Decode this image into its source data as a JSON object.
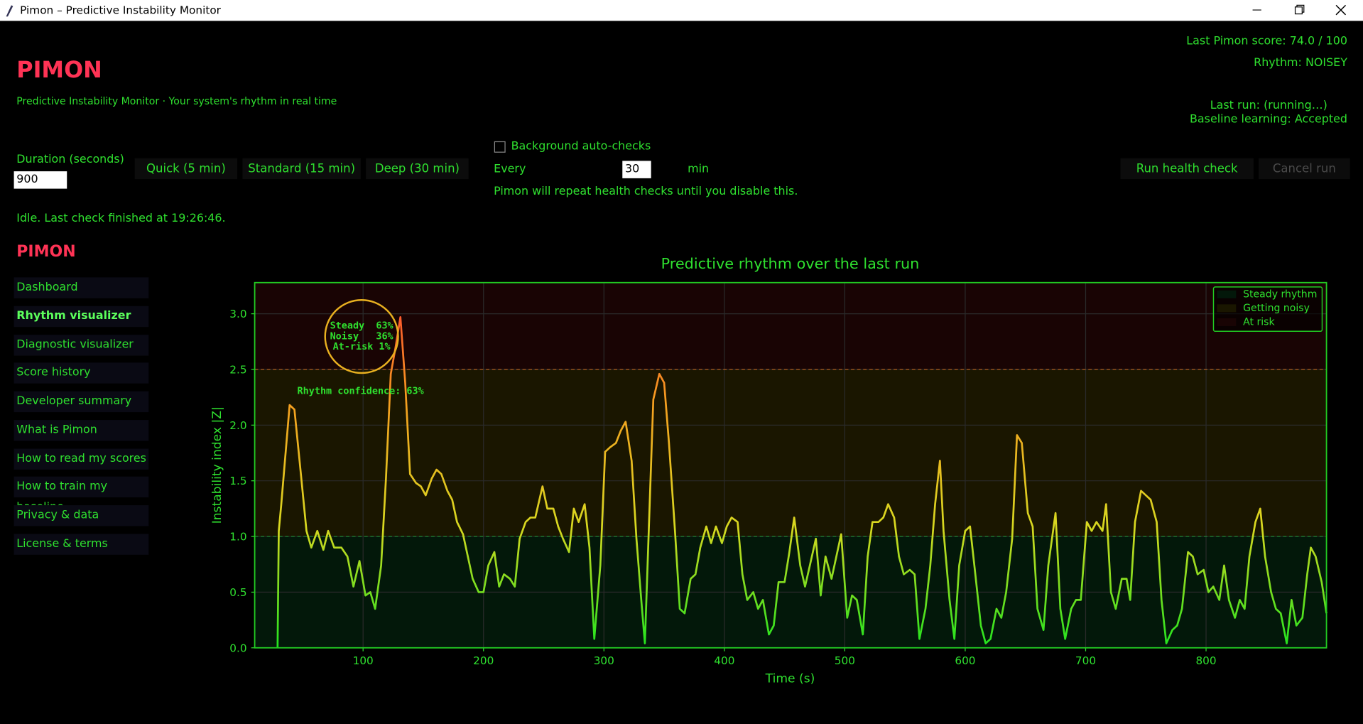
{
  "window": {
    "title": "Pimon – Predictive Instability Monitor"
  },
  "header": {
    "app_name": "PIMON",
    "tagline": "Predictive Instability Monitor · Your system's rhythm in real time",
    "score": "Last Pimon score: 74.0 / 100",
    "rhythm": "Rhythm: NOISEY",
    "last_run": "Last run: (running…)",
    "baseline": "Baseline learning: Accepted"
  },
  "controls": {
    "duration_label": "Duration (seconds)",
    "duration_value": "900",
    "presets": [
      "Quick (5 min)",
      "Standard (15 min)",
      "Deep (30 min)"
    ],
    "auto_check_label": "Background auto-checks",
    "every_label": "Every",
    "every_value": "30",
    "every_unit": "min",
    "auto_note": "Pimon will repeat health checks until you disable this.",
    "run_button": "Run health check",
    "cancel_button": "Cancel run"
  },
  "status": "Idle. Last check finished at 19:26:46.",
  "sidebar": {
    "title": "PIMON",
    "active_index": 1,
    "items": [
      "Dashboard",
      "Rhythm visualizer",
      "Diagnostic visualizer",
      "Score history",
      "Developer summary",
      "What is Pimon",
      "How to read my scores",
      "How to train my baseline",
      "Privacy & data",
      "License & terms"
    ]
  },
  "chart_data": {
    "type": "line",
    "title": "Predictive rhythm over the last run",
    "x_label": "Time (s)",
    "y_label": "Instability index |Z|",
    "xlim": [
      10,
      900
    ],
    "ylim": [
      0,
      3.28
    ],
    "xticks": [
      100,
      200,
      300,
      400,
      500,
      600,
      700,
      800
    ],
    "yticks": [
      {
        "value": 0,
        "label": "0.0"
      },
      0.5,
      {
        "value": 1,
        "label": "1.0"
      },
      1.5,
      {
        "value": 2,
        "label": "2.0"
      },
      2.5,
      {
        "value": 3,
        "label": "3.0"
      }
    ],
    "grid": true,
    "legend": "upper right",
    "line_colors": [
      "#1fe41f",
      "#d8d820",
      "#f5a020",
      "#ff4030"
    ],
    "zones": [
      {
        "name": "Steady rhythm",
        "from": 0,
        "color": "#03180a",
        "line_color": "#1e8f3a"
      },
      {
        "name": "Getting noisy",
        "from": 1,
        "color": "#1a1600",
        "line_color": "#1e8f3a"
      },
      {
        "name": "At risk",
        "from": 2.5,
        "color": "#190404",
        "line_color": "#b06020"
      }
    ],
    "annotations": {
      "mix": [
        "Steady  63%",
        "Noisy   36%",
        "At-risk 1%"
      ],
      "confidence": "Rhythm confidence: 63%"
    },
    "x": [
      29,
      30,
      32,
      39,
      43,
      48,
      53,
      57,
      62,
      67,
      71,
      76,
      82,
      87,
      92,
      97,
      102,
      106,
      110,
      115,
      119,
      123,
      127,
      131,
      135,
      139,
      144,
      148,
      152,
      157,
      161,
      165,
      170,
      174,
      178,
      183,
      187,
      191,
      196,
      200,
      204,
      209,
      213,
      217,
      222,
      226,
      230,
      235,
      239,
      243,
      249,
      253,
      258,
      262,
      266,
      271,
      275,
      279,
      284,
      288,
      292,
      297,
      301,
      305,
      310,
      314,
      318,
      323,
      327,
      331,
      334,
      337,
      341,
      346,
      350,
      354,
      359,
      363,
      367,
      372,
      376,
      380,
      385,
      389,
      393,
      398,
      402,
      406,
      411,
      415,
      419,
      424,
      428,
      432,
      437,
      441,
      445,
      450,
      454,
      458,
      463,
      467,
      471,
      476,
      480,
      484,
      489,
      493,
      497,
      502,
      506,
      510,
      515,
      519,
      523,
      528,
      532,
      536,
      541,
      545,
      549,
      554,
      558,
      562,
      567,
      571,
      575,
      579,
      582,
      587,
      591,
      595,
      600,
      604,
      608,
      613,
      617,
      621,
      626,
      630,
      634,
      639,
      643,
      647,
      652,
      656,
      660,
      665,
      669,
      675,
      679,
      683,
      688,
      692,
      696,
      701,
      705,
      709,
      714,
      717,
      721,
      725,
      730,
      734,
      737,
      741,
      746,
      750,
      754,
      759,
      763,
      767,
      772,
      776,
      780,
      785,
      789,
      793,
      798,
      802,
      806,
      811,
      815,
      819,
      824,
      828,
      832,
      836,
      841,
      845,
      849,
      854,
      858,
      862,
      867,
      871,
      875,
      880,
      884,
      887,
      891,
      896,
      900
    ],
    "values": [
      0,
      1.05,
      1.28,
      2.18,
      2.14,
      1.6,
      1.05,
      0.9,
      1.05,
      0.88,
      1.05,
      0.9,
      0.9,
      0.82,
      0.55,
      0.78,
      0.47,
      0.5,
      0.35,
      0.74,
      1.52,
      2.46,
      2.7,
      2.97,
      2.38,
      1.56,
      1.48,
      1.45,
      1.37,
      1.52,
      1.6,
      1.56,
      1.41,
      1.33,
      1.13,
      1.02,
      0.82,
      0.62,
      0.5,
      0.5,
      0.74,
      0.86,
      0.55,
      0.66,
      0.62,
      0.55,
      0.98,
      1.13,
      1.17,
      1.17,
      1.45,
      1.25,
      1.25,
      1.09,
      0.98,
      0.86,
      1.25,
      1.13,
      1.29,
      0.9,
      0.08,
      0.74,
      1.76,
      1.8,
      1.84,
      1.95,
      2.03,
      1.68,
      0.98,
      0.43,
      0.04,
      0.98,
      2.23,
      2.46,
      2.38,
      1.84,
      1.05,
      0.35,
      0.31,
      0.62,
      0.66,
      0.9,
      1.09,
      0.94,
      1.09,
      0.94,
      1.09,
      1.17,
      1.13,
      0.66,
      0.43,
      0.5,
      0.35,
      0.43,
      0.12,
      0.2,
      0.59,
      0.59,
      0.86,
      1.17,
      0.74,
      0.55,
      0.74,
      0.98,
      0.47,
      0.82,
      0.62,
      0.82,
      1.02,
      0.27,
      0.47,
      0.43,
      0.12,
      0.82,
      1.13,
      1.13,
      1.17,
      1.29,
      1.17,
      0.82,
      0.66,
      0.7,
      0.66,
      0.08,
      0.35,
      0.74,
      1.29,
      1.68,
      1.05,
      0.43,
      0.08,
      0.74,
      1.05,
      1.09,
      0.7,
      0.2,
      0.04,
      0.08,
      0.35,
      0.27,
      0.5,
      0.98,
      1.91,
      1.84,
      1.21,
      1.09,
      0.35,
      0.16,
      0.74,
      1.21,
      0.35,
      0.08,
      0.35,
      0.43,
      0.43,
      1.13,
      1.05,
      1.13,
      1.05,
      1.29,
      0.5,
      0.35,
      0.62,
      0.62,
      0.43,
      1.13,
      1.41,
      1.37,
      1.33,
      1.13,
      0.43,
      0.04,
      0.16,
      0.2,
      0.35,
      0.86,
      0.82,
      0.66,
      0.7,
      0.5,
      0.55,
      0.43,
      0.74,
      0.43,
      0.27,
      0.43,
      0.35,
      0.82,
      1.13,
      1.25,
      0.82,
      0.5,
      0.35,
      0.31,
      0.04,
      0.43,
      0.2,
      0.27,
      0.66,
      0.9,
      0.82,
      0.59,
      0.31
    ]
  }
}
